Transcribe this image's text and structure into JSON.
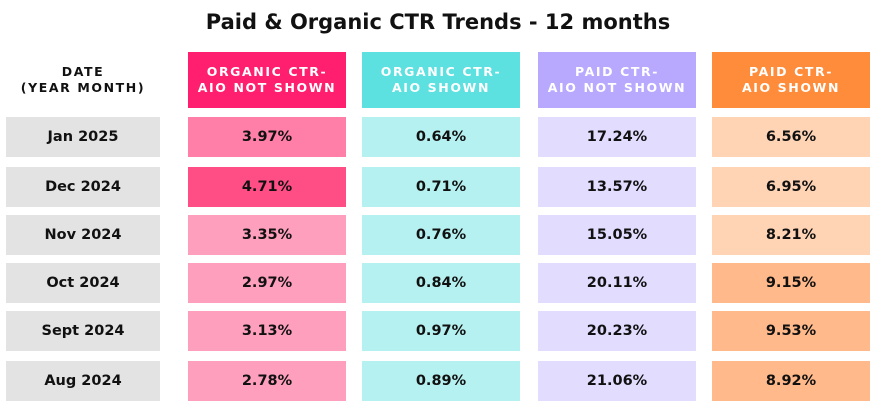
{
  "chart_data": {
    "type": "table",
    "title": "Paid & Organic CTR Trends - 12 months",
    "row_header": "DATE\n(YEAR MONTH)",
    "columns": [
      {
        "label": "ORGANIC CTR-\nAIO NOT SHOWN",
        "header_bg": "#ff1f6e",
        "header_fg": "#ffffff"
      },
      {
        "label": "ORGANIC CTR-\nAIO SHOWN",
        "header_bg": "#5ce0e0",
        "header_fg": "#ffffff"
      },
      {
        "label": "PAID CTR-\nAIO NOT SHOWN",
        "header_bg": "#b8a9ff",
        "header_fg": "#ffffff"
      },
      {
        "label": "PAID CTR-\nAIO SHOWN",
        "header_bg": "#ff8c3a",
        "header_fg": "#ffffff"
      }
    ],
    "rows": [
      {
        "date": "Jan 2025",
        "values": [
          "3.97%",
          "0.64%",
          "17.24%",
          "6.56%"
        ],
        "colors": [
          "#ff7fa8",
          "#b6f1f1",
          "#e2dcff",
          "#ffd4b5"
        ]
      },
      {
        "date": "Dec 2024",
        "values": [
          "4.71%",
          "0.71%",
          "13.57%",
          "6.95%"
        ],
        "colors": [
          "#ff4d86",
          "#b6f1f1",
          "#e2dcff",
          "#ffd4b5"
        ]
      },
      {
        "date": "Nov 2024",
        "values": [
          "3.35%",
          "0.76%",
          "15.05%",
          "8.21%"
        ],
        "colors": [
          "#ff9fbe",
          "#b6f1f1",
          "#e2dcff",
          "#ffd4b5"
        ]
      },
      {
        "date": "Oct 2024",
        "values": [
          "2.97%",
          "0.84%",
          "20.11%",
          "9.15%"
        ],
        "colors": [
          "#ff9fbe",
          "#b6f1f1",
          "#e2dcff",
          "#ffb98a"
        ]
      },
      {
        "date": "Sept 2024",
        "values": [
          "3.13%",
          "0.97%",
          "20.23%",
          "9.53%"
        ],
        "colors": [
          "#ff9fbe",
          "#b6f1f1",
          "#e2dcff",
          "#ffb98a"
        ]
      },
      {
        "date": "Aug 2024",
        "values": [
          "2.78%",
          "0.89%",
          "21.06%",
          "8.92%"
        ],
        "colors": [
          "#ff9fbe",
          "#b6f1f1",
          "#e2dcff",
          "#ffb98a"
        ]
      }
    ]
  }
}
